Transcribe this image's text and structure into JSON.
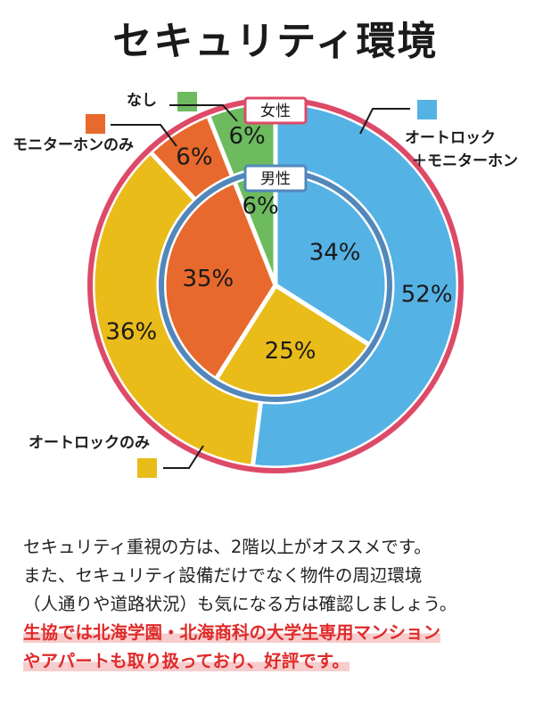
{
  "title": "セキュリティ環境",
  "chart_data": {
    "type": "donut",
    "rings": [
      {
        "name": "女性",
        "values": [
          52,
          36,
          6,
          6
        ]
      },
      {
        "name": "男性",
        "values": [
          34,
          25,
          35,
          6
        ]
      }
    ],
    "categories": [
      "オートロック＋モニターホン",
      "オートロックのみ",
      "モニターホンのみ",
      "なし"
    ],
    "category_labels": [
      [
        "オートロック",
        "＋モニターホン"
      ],
      [
        "オートロックのみ"
      ],
      [
        "モニターホンのみ"
      ],
      [
        "なし"
      ]
    ],
    "colors": [
      "#55b2e4",
      "#e9bc1a",
      "#e8692d",
      "#6dbb5e"
    ],
    "ring_label_colors": {
      "女性": "#dd4a68",
      "男性": "#5287bb"
    }
  },
  "description": {
    "lines": [
      "セキュリティ重視の方は、2階以上がオススメです。",
      "また、セキュリティ設備だけでなく物件の周辺環境",
      "（人通りや道路状況）も気になる方は確認しましょう。"
    ],
    "highlight_lines": [
      "生協では北海学園・北海商科の大学生専用マンション",
      "やアパートも取り扱っており、好評です。"
    ]
  }
}
